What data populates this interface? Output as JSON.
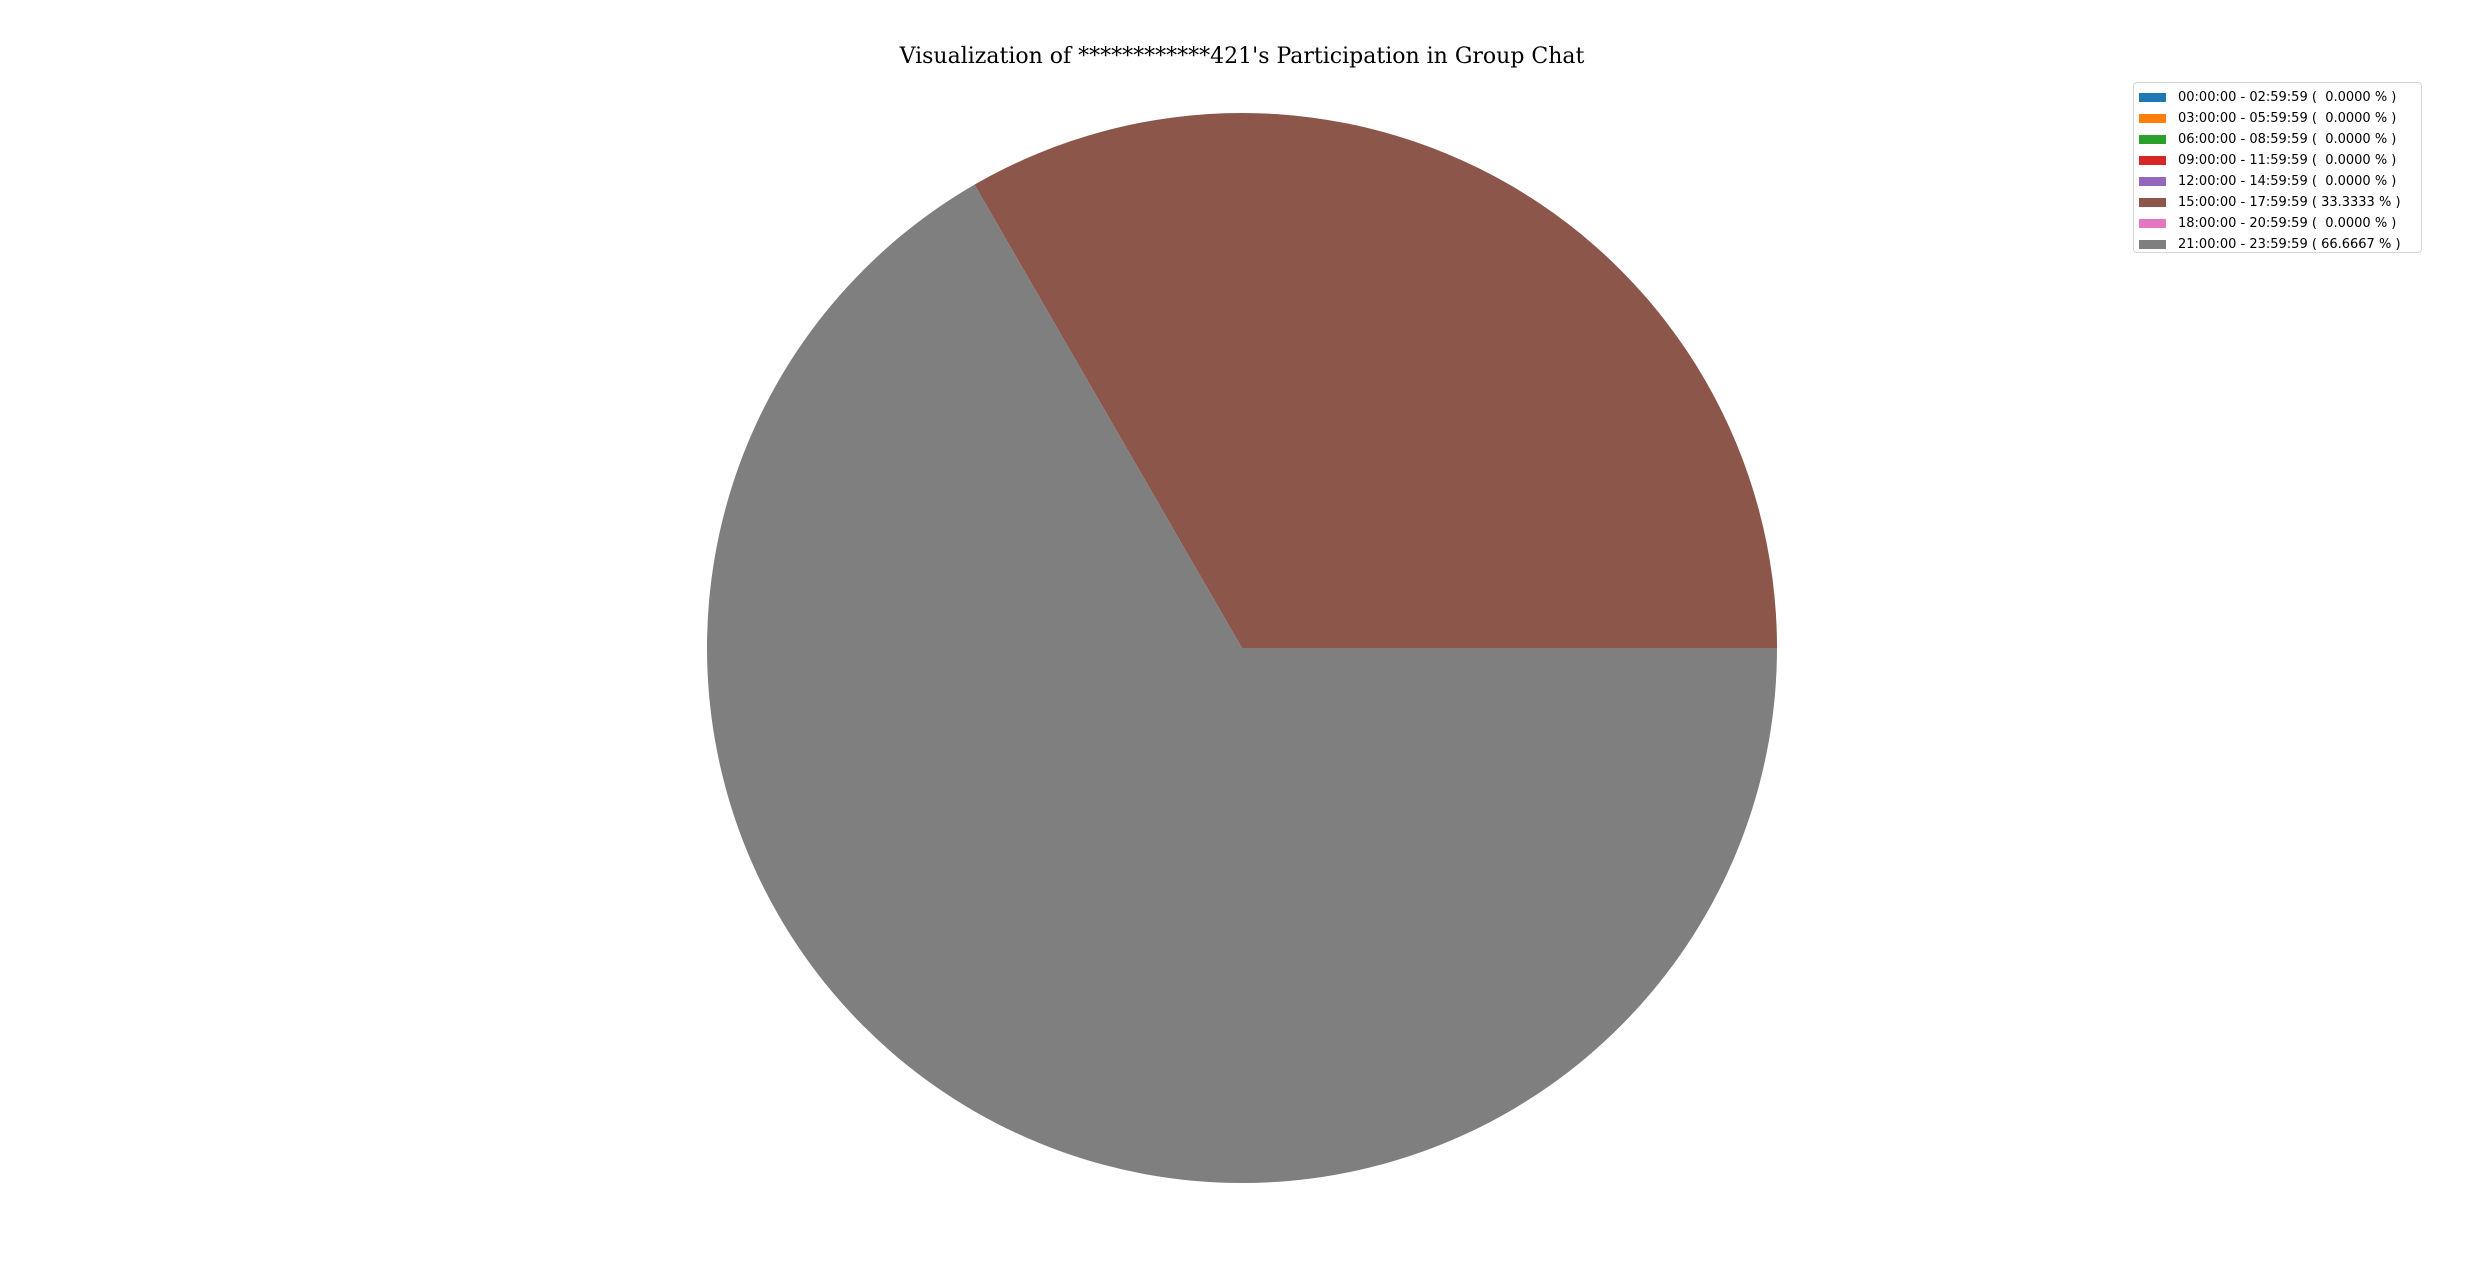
{
  "chart_data": {
    "type": "pie",
    "title": "Visualization of ************421's Participation in Group Chat",
    "start_angle_deg": 0,
    "direction": "counterclockwise",
    "legend_position": "top-right",
    "slices": [
      {
        "label": "00:00:00 - 02:59:59 (  0.0000 % )",
        "value": 0.0,
        "color": "#1f77b4"
      },
      {
        "label": "03:00:00 - 05:59:59 (  0.0000 % )",
        "value": 0.0,
        "color": "#ff7f0e"
      },
      {
        "label": "06:00:00 - 08:59:59 (  0.0000 % )",
        "value": 0.0,
        "color": "#2ca02c"
      },
      {
        "label": "09:00:00 - 11:59:59 (  0.0000 % )",
        "value": 0.0,
        "color": "#d62728"
      },
      {
        "label": "12:00:00 - 14:59:59 (  0.0000 % )",
        "value": 0.0,
        "color": "#9467bd"
      },
      {
        "label": "15:00:00 - 17:59:59 ( 33.3333 % )",
        "value": 33.3333,
        "color": "#8c564b"
      },
      {
        "label": "18:00:00 - 20:59:59 (  0.0000 % )",
        "value": 0.0,
        "color": "#e377c2"
      },
      {
        "label": "21:00:00 - 23:59:59 ( 66.6667 % )",
        "value": 66.6667,
        "color": "#7f7f7f"
      }
    ]
  }
}
